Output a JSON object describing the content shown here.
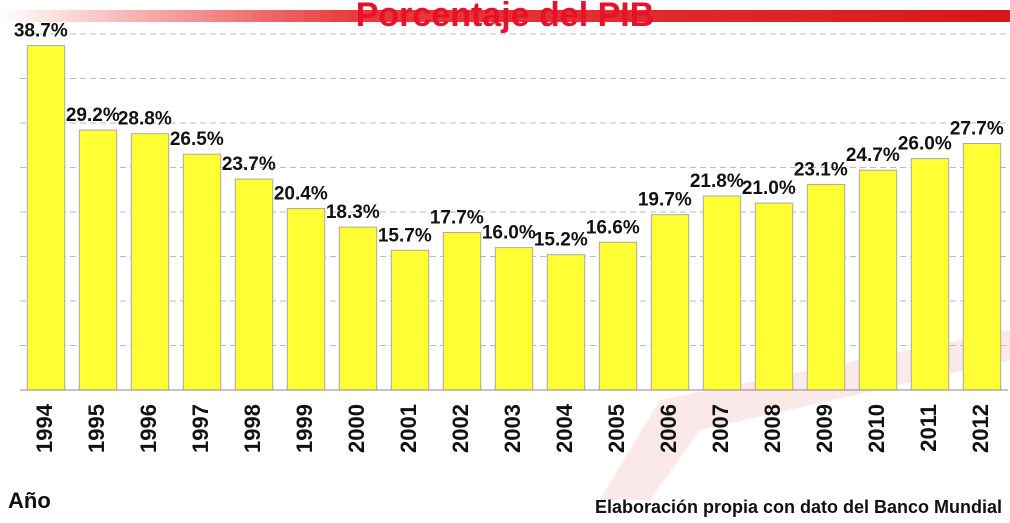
{
  "chart_data": {
    "type": "bar",
    "title": "Porcentaje del PIB",
    "x_label": "Año",
    "source": "Elaboración propia con dato del Banco Mundial",
    "categories": [
      "1994",
      "1995",
      "1996",
      "1997",
      "1998",
      "1999",
      "2000",
      "2001",
      "2002",
      "2003",
      "2004",
      "2005",
      "2006",
      "2007",
      "2008",
      "2009",
      "2010",
      "2011",
      "2012"
    ],
    "values": [
      38.7,
      29.2,
      28.8,
      26.5,
      23.7,
      20.4,
      18.3,
      15.7,
      17.7,
      16.0,
      15.2,
      16.6,
      19.7,
      21.8,
      21.0,
      23.1,
      24.7,
      26.0,
      27.7
    ],
    "value_labels": [
      "38.7%",
      "29.2%",
      "28.8%",
      "26.5%",
      "23.7%",
      "20.4%",
      "18.3%",
      "15.7%",
      "17.7%",
      "16.0%",
      "15.2%",
      "16.6%",
      "19.7%",
      "21.8%",
      "21.0%",
      "23.1%",
      "24.7%",
      "26.0%",
      "27.7%"
    ],
    "color": "#ffff33",
    "ylim": [
      0,
      40
    ],
    "yticks": [
      0,
      5,
      10,
      15,
      20,
      25,
      30,
      35,
      40
    ],
    "grid": true
  }
}
